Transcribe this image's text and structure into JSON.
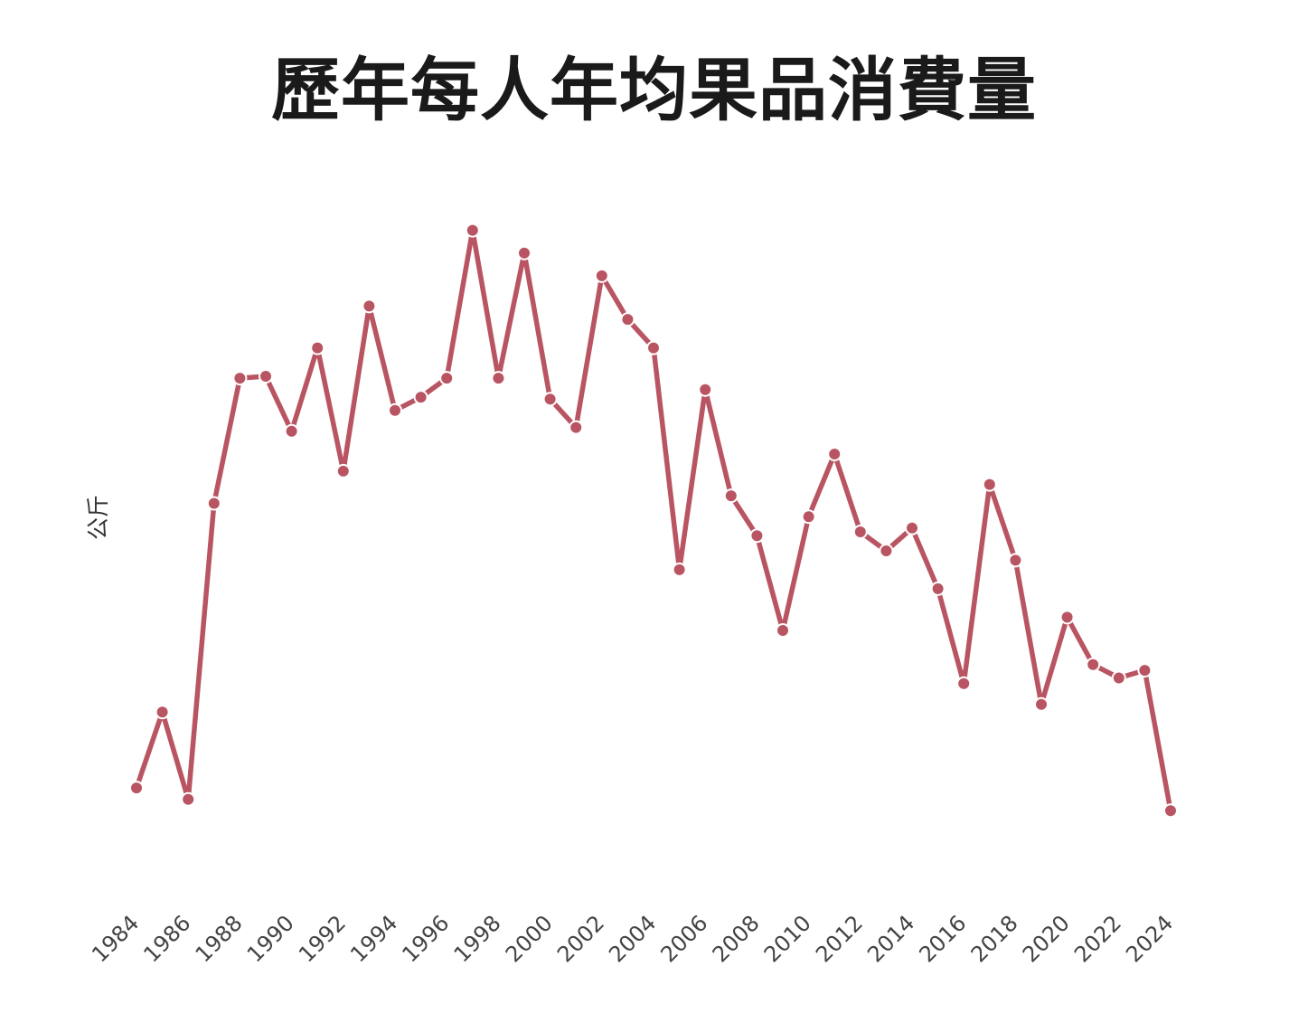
{
  "chart_data": {
    "type": "line",
    "title": "歷年每人年均果品消費量",
    "xlabel": "",
    "ylabel": "公斤",
    "x": [
      1984,
      1985,
      1986,
      1987,
      1988,
      1989,
      1990,
      1991,
      1992,
      1993,
      1994,
      1995,
      1996,
      1997,
      1998,
      1999,
      2000,
      2001,
      2002,
      2003,
      2004,
      2005,
      2006,
      2007,
      2008,
      2009,
      2010,
      2011,
      2012,
      2013,
      2014,
      2015,
      2016,
      2017,
      2018,
      2019,
      2020,
      2021,
      2022,
      2023,
      2024
    ],
    "x_tick_labels": [
      "1984",
      "1986",
      "1988",
      "1990",
      "1992",
      "1994",
      "1996",
      "1998",
      "2000",
      "2002",
      "2004",
      "2006",
      "2008",
      "2010",
      "2012",
      "2014",
      "2016",
      "2018",
      "2020",
      "2022",
      "2024"
    ],
    "series": [
      {
        "values": [
          85.0,
          89.0,
          84.4,
          100.0,
          106.6,
          106.7,
          103.8,
          108.2,
          101.7,
          110.4,
          104.9,
          105.6,
          106.6,
          114.4,
          106.6,
          113.2,
          105.5,
          104.0,
          112.0,
          109.7,
          108.2,
          96.5,
          106.0,
          100.4,
          98.3,
          93.3,
          99.3,
          102.6,
          98.5,
          97.5,
          98.7,
          95.5,
          90.5,
          101.0,
          97.0,
          89.4,
          94.0,
          91.5,
          90.8,
          91.2,
          83.8
        ],
        "color": "#b95562"
      }
    ],
    "ylim": [
      82.0,
      116.0
    ],
    "grid": false,
    "legend": "none"
  }
}
